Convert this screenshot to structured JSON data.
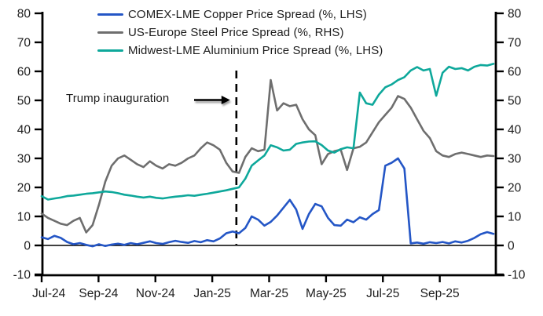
{
  "chart": {
    "background": "#ffffff",
    "text_color": "#1d1d1d",
    "axis_color": "#000000"
  },
  "chart_data": {
    "type": "line",
    "title": "",
    "xlabel": "",
    "ylabel": "",
    "ylim": [
      -10,
      80
    ],
    "grid": "off",
    "zero_line": true,
    "legend_position": "top-left-inside",
    "x_tick_labels": [
      "Jul-24",
      "Sep-24",
      "Nov-24",
      "Jan-25",
      "Mar-25",
      "May-25",
      "Jul-25",
      "Sep-25"
    ],
    "y_tick_values": [
      80,
      70,
      60,
      50,
      40,
      30,
      20,
      10,
      0,
      -10
    ],
    "event_line": {
      "x_frac": 0.428,
      "style": "dashed",
      "color": "#000000"
    },
    "annotation": {
      "text": "Trump inauguration",
      "value_y": 50,
      "arrow_to_event_line": true
    },
    "x_unit": "weekly points, Jul-2024 to early-Nov-2025",
    "series": [
      {
        "id": "copper",
        "label": "COMEX-LME Copper Price Spread (%, LHS)",
        "axis": "LHS",
        "color": "#2456C6",
        "values": [
          2.8,
          2.2,
          3.3,
          2.6,
          1.2,
          0.4,
          0.8,
          0.2,
          -0.3,
          0.4,
          -0.2,
          0.3,
          0.6,
          0.2,
          0.8,
          0.4,
          0.9,
          1.4,
          0.8,
          0.5,
          1.1,
          1.6,
          1.2,
          0.9,
          1.5,
          1.1,
          1.8,
          1.4,
          2.4,
          4.2,
          4.8,
          4.2,
          6,
          10,
          8.9,
          6.8,
          8.1,
          10.3,
          13,
          15.7,
          12.4,
          5.7,
          10.8,
          14.3,
          13.5,
          9.5,
          7,
          6.8,
          8.9,
          8,
          9.7,
          8.9,
          10.8,
          12.2,
          27.5,
          28.5,
          30,
          26.5,
          0.7,
          1,
          0.6,
          1.1,
          0.8,
          1.2,
          0.7,
          1.4,
          1,
          1.6,
          2.6,
          3.9,
          4.6,
          4
        ]
      },
      {
        "id": "steel",
        "label": "US-Europe Steel Price Spread (%, RHS)",
        "axis": "RHS",
        "color": "#6E6E6E",
        "values": [
          11,
          9.5,
          8.5,
          7.5,
          7,
          8.5,
          9.5,
          4.5,
          7,
          14,
          22,
          27.5,
          30,
          31,
          29.5,
          28,
          27,
          29,
          27.5,
          26.5,
          28,
          27.5,
          28.5,
          30,
          31,
          33.5,
          35.5,
          34.5,
          33,
          28.5,
          25.5,
          25,
          30.5,
          33.5,
          32.5,
          33,
          57,
          46.5,
          49,
          48,
          48.5,
          43.5,
          40,
          38,
          28,
          31.5,
          32.5,
          33,
          26,
          33.5,
          34,
          35.5,
          39,
          42.5,
          45,
          47.5,
          51.5,
          50.5,
          47.5,
          43.5,
          39.5,
          37,
          32.5,
          31,
          30.5,
          31.5,
          32,
          31.5,
          31,
          30.5,
          31,
          30.8
        ]
      },
      {
        "id": "aluminium",
        "label": "Midwest-LME Aluminium Price Spread (%, LHS)",
        "axis": "LHS",
        "color": "#0EA89B",
        "values": [
          17,
          15.8,
          16.2,
          16.5,
          17,
          17.2,
          17.5,
          17.8,
          18,
          18.3,
          18.6,
          18.4,
          18,
          17.5,
          17.2,
          16.8,
          16.5,
          16.8,
          16.4,
          16.2,
          16.5,
          16.8,
          17,
          17.3,
          17.1,
          17.5,
          17.8,
          18.2,
          18.6,
          19,
          19.5,
          20,
          23,
          27.5,
          29.3,
          31,
          34.5,
          33.8,
          32.7,
          33,
          35,
          35.5,
          35.8,
          35.9,
          34.6,
          32.7,
          32,
          33.2,
          33.8,
          33.5,
          52.7,
          49,
          48.5,
          52,
          54.5,
          55.5,
          57,
          58,
          60.3,
          61.5,
          60.3,
          60.8,
          51.6,
          59.5,
          61.6,
          60.8,
          61.1,
          60.3,
          61.6,
          62.2,
          62,
          62.6
        ]
      }
    ]
  }
}
